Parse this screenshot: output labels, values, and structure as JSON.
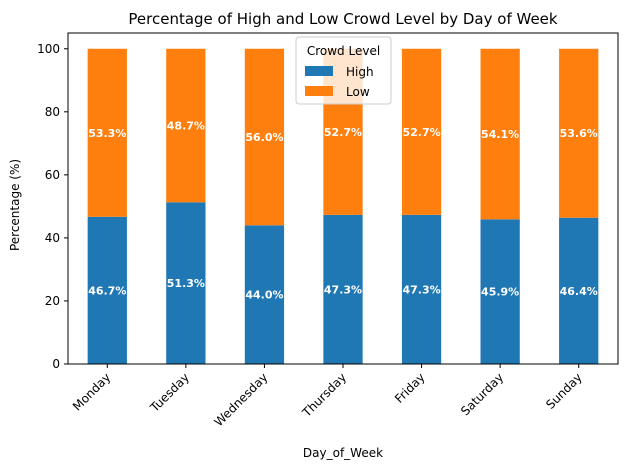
{
  "chart_data": {
    "type": "bar",
    "stacked": true,
    "title": "Percentage of High and Low Crowd Level by Day of Week",
    "xlabel": "Day_of_Week",
    "ylabel": "Percentage (%)",
    "ylim": [
      0,
      105
    ],
    "yticks": [
      0,
      20,
      40,
      60,
      80,
      100
    ],
    "grid": false,
    "legend": {
      "title": "Crowd Level",
      "placement": "top-center"
    },
    "categories": [
      "Monday",
      "Tuesday",
      "Wednesday",
      "Thursday",
      "Friday",
      "Saturday",
      "Sunday"
    ],
    "series": [
      {
        "name": "High",
        "color": "#1f77b4",
        "values": [
          46.7,
          51.3,
          44.0,
          47.3,
          47.3,
          45.9,
          46.4
        ],
        "labels": [
          "46.7%",
          "51.3%",
          "44.0%",
          "47.3%",
          "47.3%",
          "45.9%",
          "46.4%"
        ]
      },
      {
        "name": "Low",
        "color": "#ff7f0e",
        "values": [
          53.3,
          48.7,
          56.0,
          52.7,
          52.7,
          54.1,
          53.6
        ],
        "labels": [
          "53.3%",
          "48.7%",
          "56.0%",
          "52.7%",
          "52.7%",
          "54.1%",
          "53.6%"
        ]
      }
    ]
  }
}
